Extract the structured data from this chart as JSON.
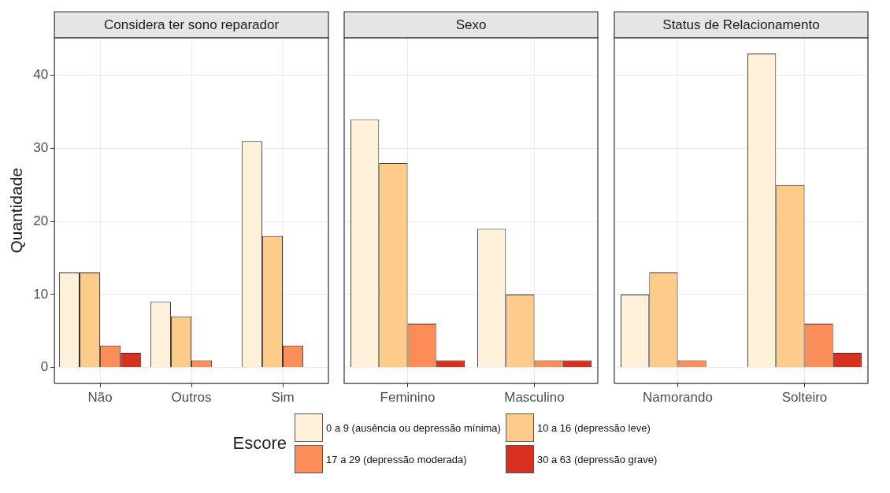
{
  "chart_data": [
    {
      "type": "bar",
      "title": "Considera ter sono reparador",
      "ylabel": "Quantidade",
      "legend_title": "Escore",
      "legend": "bottom",
      "grid": true,
      "categories": [
        "Não",
        "Outros",
        "Sim"
      ],
      "ylim": [
        -2.15,
        45.15
      ],
      "yticks": [
        0,
        10,
        20,
        30,
        40
      ],
      "series": [
        {
          "name": "0 a 9 (ausência ou depressão mínima)",
          "color": "#fef0d9",
          "values": [
            13,
            9,
            31
          ]
        },
        {
          "name": "10 a 16 (depressão leve)",
          "color": "#fdcc8a",
          "values": [
            13,
            7,
            18
          ]
        },
        {
          "name": "17 a 29 (depressão moderada)",
          "color": "#fc8d59",
          "values": [
            3,
            1,
            3
          ]
        },
        {
          "name": "30 a 63 (depressão grave)",
          "color": "#d7301f",
          "values": [
            2,
            null,
            null
          ]
        }
      ]
    },
    {
      "type": "bar",
      "title": "Sexo",
      "grid": true,
      "tick_labels": "x",
      "categories": [
        "Feminino",
        "Masculino"
      ],
      "ylim": [
        -2.15,
        45.15
      ],
      "yticks": [
        0,
        10,
        20,
        30,
        40
      ],
      "series": [
        {
          "color": "#fef0d9",
          "values": [
            34,
            19
          ]
        },
        {
          "color": "#fdcc8a",
          "values": [
            28,
            10
          ]
        },
        {
          "color": "#fc8d59",
          "values": [
            6,
            1
          ]
        },
        {
          "color": "#d7301f",
          "values": [
            1,
            1
          ]
        }
      ]
    },
    {
      "type": "bar",
      "title": "Status de Relacionamento",
      "grid": true,
      "tick_labels": "x",
      "categories": [
        "Namorando",
        "Solteiro"
      ],
      "ylim": [
        -2.15,
        45.15
      ],
      "yticks": [
        0,
        10,
        20,
        30,
        40
      ],
      "series": [
        {
          "color": "#fef0d9",
          "values": [
            10,
            43
          ]
        },
        {
          "color": "#fdcc8a",
          "values": [
            13,
            25
          ]
        },
        {
          "color": "#fc8d59",
          "values": [
            1,
            6
          ]
        },
        {
          "color": "#d7301f",
          "values": [
            null,
            2
          ]
        }
      ]
    }
  ]
}
